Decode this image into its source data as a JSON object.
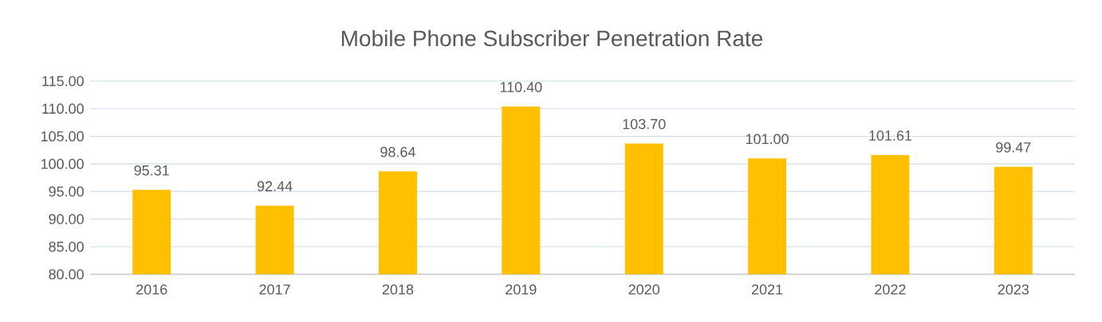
{
  "chart_data": {
    "type": "bar",
    "title": "Mobile Phone Subscriber Penetration Rate",
    "categories": [
      "2016",
      "2017",
      "2018",
      "2019",
      "2020",
      "2021",
      "2022",
      "2023"
    ],
    "values": [
      95.31,
      92.44,
      98.64,
      110.4,
      103.7,
      101.0,
      101.61,
      99.47
    ],
    "value_labels": [
      "95.31",
      "92.44",
      "98.64",
      "110.40",
      "103.70",
      "101.00",
      "101.61",
      "99.47"
    ],
    "color": "#ffc000",
    "ylim": [
      80,
      115
    ],
    "yticks": [
      {
        "value": 80,
        "label": "80.00"
      },
      {
        "value": 85,
        "label": "85.00"
      },
      {
        "value": 90,
        "label": "90.00"
      },
      {
        "value": 95,
        "label": "95.00"
      },
      {
        "value": 100,
        "label": "100.00"
      },
      {
        "value": 105,
        "label": "105.00"
      },
      {
        "value": 110,
        "label": "110.00"
      },
      {
        "value": 115,
        "label": "115.00"
      }
    ],
    "grid": "y"
  }
}
